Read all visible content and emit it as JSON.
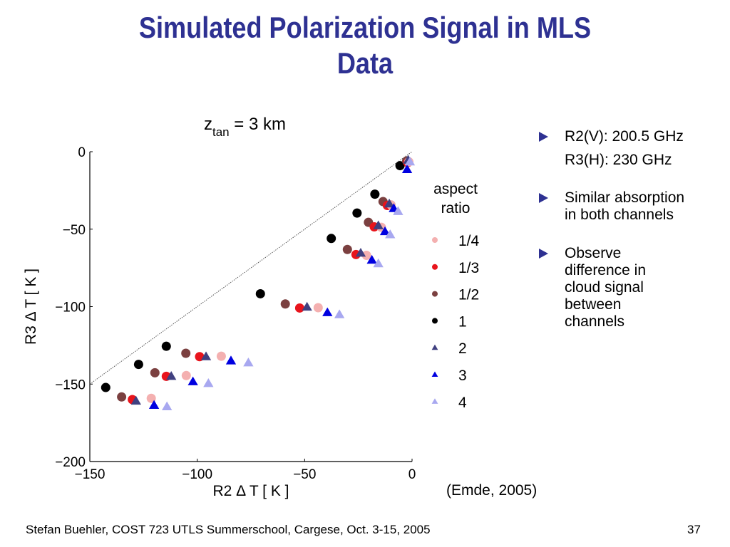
{
  "slide": {
    "title_lines": [
      "Simulated Polarization Signal in MLS",
      "Data"
    ],
    "bullets": [
      {
        "lines": [
          "R2(V): 200.5 GHz",
          "R3(H): 230 GHz"
        ]
      },
      {
        "lines": [
          "Similar absorption",
          "in both channels"
        ]
      },
      {
        "lines": [
          "Observe",
          "difference in",
          "cloud signal",
          "between",
          "channels"
        ]
      }
    ],
    "citation": "(Emde, 2005)",
    "footer": "Stefan Buehler, COST 723 UTLS Summerschool, Cargese, Oct. 3-15, 2005",
    "page_number": "37",
    "title_color": "#2e3192",
    "bullet_icon": "triangle-right-icon"
  },
  "chart_data": {
    "type": "scatter",
    "title_main": "z",
    "title_sub": "tan",
    "title_rest": " = 3 km",
    "xlabel": "R2 Δ T [ K ]",
    "ylabel": "R3 Δ T [ K ]",
    "xlim": [
      -150,
      0
    ],
    "ylim": [
      -200,
      0
    ],
    "xticks": [
      -150,
      -100,
      -50,
      0
    ],
    "yticks": [
      0,
      -50,
      -100,
      -150,
      -200
    ],
    "xtick_labels": [
      "−150",
      "−100",
      "−50",
      "0"
    ],
    "ytick_labels": [
      "0",
      "−50",
      "−100",
      "−150",
      "−200"
    ],
    "grid": false,
    "reference_line": {
      "label": "1:1 line",
      "x": [
        -150,
        0
      ],
      "y": [
        -150,
        0
      ],
      "style": "dotted"
    },
    "legend": {
      "title_lines": [
        "aspect",
        "ratio"
      ],
      "placement": "right"
    },
    "series": [
      {
        "name": "1/4",
        "marker": "circle",
        "color": "#f4b0b0",
        "x": [
          -1.5,
          -9.8,
          -14.3,
          -21.2,
          -43.7,
          -88.8,
          -105.1,
          -121.4
        ],
        "y": [
          -6.5,
          -34.3,
          -48.8,
          -66.9,
          -100.7,
          -132.0,
          -144.5,
          -159.2
        ]
      },
      {
        "name": "1/3",
        "marker": "circle",
        "color": "#e8141c",
        "x": [
          -2.0,
          -11.5,
          -17.6,
          -26.1,
          -52.3,
          -98.9,
          -114.4,
          -130.2
        ],
        "y": [
          -7.0,
          -34.7,
          -48.5,
          -66.4,
          -100.9,
          -132.3,
          -145.0,
          -160.0
        ]
      },
      {
        "name": "1/2",
        "marker": "circle",
        "color": "#7b4040",
        "x": [
          -2.5,
          -13.5,
          -20.3,
          -30.1,
          -59.0,
          -105.3,
          -119.7,
          -135.2
        ],
        "y": [
          -6.0,
          -32.2,
          -45.6,
          -63.1,
          -98.3,
          -130.1,
          -142.7,
          -158.3
        ]
      },
      {
        "name": "1",
        "marker": "circle",
        "color": "#000000",
        "x": [
          -5.6,
          -17.3,
          -25.6,
          -37.6,
          -70.6,
          -114.4,
          -127.3,
          -142.6
        ],
        "y": [
          -9.0,
          -27.4,
          -39.6,
          -56.0,
          -91.7,
          -125.6,
          -137.3,
          -152.2
        ]
      },
      {
        "name": "2",
        "marker": "triangle",
        "color": "#404080",
        "x": [
          -1.8,
          -10.6,
          -15.7,
          -23.9,
          -48.9,
          -95.9,
          -112.1,
          -128.5
        ],
        "y": [
          -5.5,
          -33.7,
          -47.8,
          -65.5,
          -100.3,
          -132.3,
          -145.0,
          -161.0
        ]
      },
      {
        "name": "3",
        "marker": "triangle",
        "color": "#0000e0",
        "x": [
          -2.3,
          -8.5,
          -12.6,
          -18.7,
          -39.4,
          -84.3,
          -102.0,
          -120.1
        ],
        "y": [
          -11.5,
          -36.7,
          -51.6,
          -70.0,
          -103.9,
          -135.0,
          -148.5,
          -163.7
        ]
      },
      {
        "name": "4",
        "marker": "triangle",
        "color": "#a8a8f0",
        "x": [
          -1.0,
          -6.5,
          -10.2,
          -15.7,
          -33.8,
          -76.2,
          -94.8,
          -114.1
        ],
        "y": [
          -6.6,
          -38.6,
          -53.6,
          -72.3,
          -105.2,
          -136.3,
          -149.6,
          -164.6
        ]
      }
    ]
  }
}
